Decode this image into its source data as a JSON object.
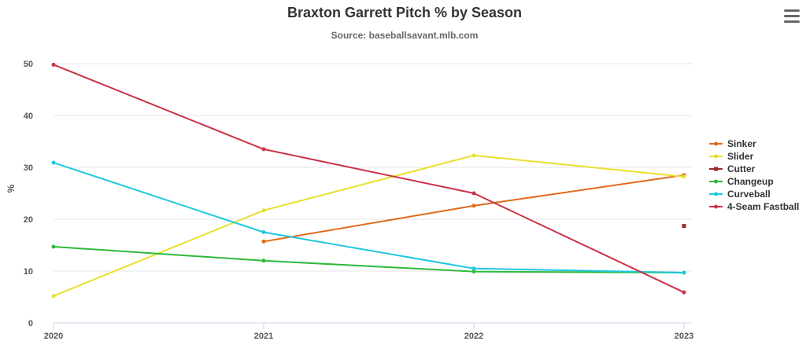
{
  "chart_data": {
    "type": "line",
    "title": "Braxton Garrett Pitch % by Season",
    "subtitle": "Source: baseballsavant.mlb.com",
    "ylabel": "%",
    "xlabel": "",
    "categories": [
      "2020",
      "2021",
      "2022",
      "2023"
    ],
    "ylim": [
      0,
      50
    ],
    "yticks": [
      0,
      10,
      20,
      30,
      40,
      50
    ],
    "grid": true,
    "legend_position": "right",
    "series": [
      {
        "name": "Sinker",
        "color": "#e06a1a",
        "values": [
          null,
          15.7,
          22.6,
          28.5
        ]
      },
      {
        "name": "Slider",
        "color": "#e8e02e",
        "values": [
          5.2,
          21.7,
          32.3,
          28.2
        ]
      },
      {
        "name": "Cutter",
        "color": "#9b2a2a",
        "values": [
          null,
          null,
          null,
          18.7
        ]
      },
      {
        "name": "Changeup",
        "color": "#2fba3a",
        "values": [
          14.7,
          12.0,
          9.9,
          9.7
        ]
      },
      {
        "name": "Curveball",
        "color": "#1ec8e0",
        "values": [
          30.9,
          17.5,
          10.5,
          9.7
        ]
      },
      {
        "name": "4-Seam Fastball",
        "color": "#cc3346",
        "values": [
          49.8,
          33.5,
          25.0,
          5.9
        ]
      }
    ]
  },
  "menu": {
    "icon": "hamburger-menu-icon"
  }
}
